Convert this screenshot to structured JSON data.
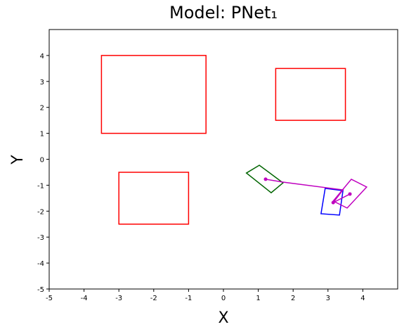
{
  "chart_data": {
    "type": "shapes",
    "title": "Model: PNet₁",
    "xlabel": "X",
    "ylabel": "Y",
    "xlim": [
      -5,
      5
    ],
    "ylim": [
      -5,
      5
    ],
    "xticks": [
      -5,
      -4,
      -3,
      -2,
      -1,
      0,
      1,
      2,
      3,
      4
    ],
    "yticks": [
      -5,
      -4,
      -3,
      -2,
      -1,
      0,
      1,
      2,
      3,
      4
    ],
    "series": [
      {
        "kind": "polygon",
        "color": "#ff0000",
        "x": [
          -3.5,
          -0.5,
          -0.5,
          -3.5
        ],
        "y": [
          1,
          1,
          4,
          4
        ]
      },
      {
        "kind": "polygon",
        "color": "#ff0000",
        "x": [
          1.5,
          3.5,
          3.5,
          1.5
        ],
        "y": [
          1.5,
          1.5,
          3.5,
          3.5
        ]
      },
      {
        "kind": "polygon",
        "color": "#ff0000",
        "x": [
          -3,
          -1,
          -1,
          -3
        ],
        "y": [
          -2.5,
          -2.5,
          -0.5,
          -0.5
        ]
      },
      {
        "kind": "polygon",
        "color": "#006400",
        "x": [
          0.66,
          1.03,
          1.71,
          1.37
        ],
        "y": [
          -0.53,
          -0.23,
          -0.91,
          -1.29
        ]
      },
      {
        "kind": "polygon",
        "color": "#0000ff",
        "x": [
          2.92,
          3.43,
          3.33,
          2.8
        ],
        "y": [
          -1.12,
          -1.21,
          -2.15,
          -2.1
        ]
      },
      {
        "kind": "polygon",
        "color": "#bf00bf",
        "x": [
          3.67,
          4.11,
          3.55,
          3.15
        ],
        "y": [
          -0.77,
          -1.07,
          -1.88,
          -1.61
        ]
      },
      {
        "kind": "line",
        "color": "#bf00bf",
        "x": [
          1.21,
          1.71,
          3.43,
          3.15,
          3.63
        ],
        "y": [
          -0.77,
          -0.88,
          -1.18,
          -1.67,
          -1.34
        ]
      },
      {
        "kind": "points",
        "color": "#bf00bf",
        "x": [
          1.21,
          3.15,
          3.63
        ],
        "y": [
          -0.77,
          -1.67,
          -1.34
        ]
      }
    ]
  }
}
